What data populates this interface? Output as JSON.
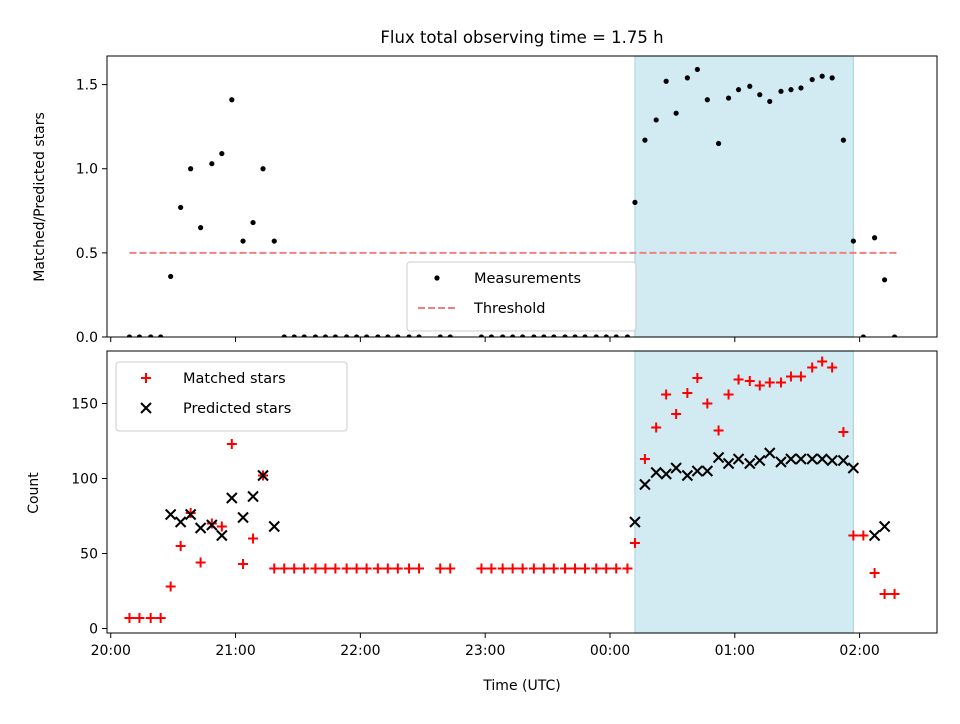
{
  "chart_data": {
    "title": "Flux total observing time = 1.75 h",
    "xlabel": "Time (UTC)",
    "x_ticks": [
      "20:00",
      "21:00",
      "22:00",
      "23:00",
      "00:00",
      "01:00",
      "02:00"
    ],
    "x_tick_hours": [
      20,
      21,
      22,
      23,
      24,
      25,
      26
    ],
    "xlim_hours": [
      19.97,
      26.62
    ],
    "highlight_hours": [
      24.2,
      25.95
    ],
    "highlight_color": "#add8e6",
    "panels": [
      {
        "type": "scatter",
        "ylabel": "Matched/Predicted stars",
        "ylim": [
          0,
          1.67
        ],
        "y_ticks": [
          0.0,
          0.5,
          1.0,
          1.5
        ],
        "y_tick_labels": [
          "0.0",
          "0.5",
          "1.0",
          "1.5"
        ],
        "legend_position": "lower-center",
        "threshold": {
          "name": "Threshold",
          "value": 0.5,
          "x_range": [
            20.15,
            26.3
          ],
          "color": "#f08080"
        },
        "series": [
          {
            "name": "Measurements",
            "marker": "dot",
            "color": "#000000",
            "points": [
              [
                20.15,
                0
              ],
              [
                20.23,
                0
              ],
              [
                20.32,
                0
              ],
              [
                20.4,
                0
              ],
              [
                20.48,
                0.36
              ],
              [
                20.56,
                0.77
              ],
              [
                20.64,
                1.0
              ],
              [
                20.72,
                0.65
              ],
              [
                20.81,
                1.03
              ],
              [
                20.89,
                1.09
              ],
              [
                20.97,
                1.41
              ],
              [
                21.06,
                0.57
              ],
              [
                21.14,
                0.68
              ],
              [
                21.22,
                1.0
              ],
              [
                21.31,
                0.57
              ],
              [
                21.39,
                0
              ],
              [
                21.47,
                0
              ],
              [
                21.55,
                0
              ],
              [
                21.64,
                0
              ],
              [
                21.72,
                0
              ],
              [
                21.8,
                0
              ],
              [
                21.89,
                0
              ],
              [
                21.97,
                0
              ],
              [
                22.05,
                0
              ],
              [
                22.14,
                0
              ],
              [
                22.22,
                0
              ],
              [
                22.3,
                0
              ],
              [
                22.39,
                0
              ],
              [
                22.47,
                0
              ],
              [
                22.64,
                0
              ],
              [
                22.72,
                0
              ],
              [
                22.97,
                0
              ],
              [
                23.05,
                0
              ],
              [
                23.14,
                0
              ],
              [
                23.22,
                0
              ],
              [
                23.3,
                0
              ],
              [
                23.39,
                0
              ],
              [
                23.47,
                0
              ],
              [
                23.55,
                0
              ],
              [
                23.64,
                0
              ],
              [
                23.72,
                0
              ],
              [
                23.8,
                0
              ],
              [
                23.89,
                0
              ],
              [
                23.97,
                0
              ],
              [
                24.05,
                0
              ],
              [
                24.14,
                0
              ],
              [
                24.2,
                0.8
              ],
              [
                24.28,
                1.17
              ],
              [
                24.37,
                1.29
              ],
              [
                24.45,
                1.52
              ],
              [
                24.53,
                1.33
              ],
              [
                24.62,
                1.54
              ],
              [
                24.7,
                1.59
              ],
              [
                24.78,
                1.41
              ],
              [
                24.87,
                1.15
              ],
              [
                24.95,
                1.42
              ],
              [
                25.03,
                1.47
              ],
              [
                25.12,
                1.49
              ],
              [
                25.2,
                1.44
              ],
              [
                25.28,
                1.4
              ],
              [
                25.37,
                1.46
              ],
              [
                25.45,
                1.47
              ],
              [
                25.53,
                1.48
              ],
              [
                25.62,
                1.53
              ],
              [
                25.7,
                1.55
              ],
              [
                25.78,
                1.54
              ],
              [
                25.87,
                1.17
              ],
              [
                25.95,
                0.57
              ],
              [
                26.03,
                0
              ],
              [
                26.12,
                0.59
              ],
              [
                26.2,
                0.34
              ],
              [
                26.28,
                0
              ]
            ]
          }
        ]
      },
      {
        "type": "scatter",
        "ylabel": "Count",
        "ylim": [
          -3,
          185
        ],
        "y_ticks": [
          0,
          50,
          100,
          150
        ],
        "y_tick_labels": [
          "0",
          "50",
          "100",
          "150"
        ],
        "legend_position": "top-left",
        "series": [
          {
            "name": "Matched stars",
            "marker": "plus",
            "color": "#ff0000",
            "points": [
              [
                20.15,
                7
              ],
              [
                20.23,
                7
              ],
              [
                20.32,
                7
              ],
              [
                20.4,
                7
              ],
              [
                20.48,
                28
              ],
              [
                20.56,
                55
              ],
              [
                20.64,
                77
              ],
              [
                20.72,
                44
              ],
              [
                20.81,
                70
              ],
              [
                20.89,
                68
              ],
              [
                20.97,
                123
              ],
              [
                21.06,
                43
              ],
              [
                21.14,
                60
              ],
              [
                21.22,
                102
              ],
              [
                21.31,
                40
              ],
              [
                21.39,
                40
              ],
              [
                21.47,
                40
              ],
              [
                21.55,
                40
              ],
              [
                21.64,
                40
              ],
              [
                21.72,
                40
              ],
              [
                21.8,
                40
              ],
              [
                21.89,
                40
              ],
              [
                21.97,
                40
              ],
              [
                22.05,
                40
              ],
              [
                22.14,
                40
              ],
              [
                22.22,
                40
              ],
              [
                22.3,
                40
              ],
              [
                22.39,
                40
              ],
              [
                22.47,
                40
              ],
              [
                22.64,
                40
              ],
              [
                22.72,
                40
              ],
              [
                22.97,
                40
              ],
              [
                23.05,
                40
              ],
              [
                23.14,
                40
              ],
              [
                23.22,
                40
              ],
              [
                23.3,
                40
              ],
              [
                23.39,
                40
              ],
              [
                23.47,
                40
              ],
              [
                23.55,
                40
              ],
              [
                23.64,
                40
              ],
              [
                23.72,
                40
              ],
              [
                23.8,
                40
              ],
              [
                23.89,
                40
              ],
              [
                23.97,
                40
              ],
              [
                24.05,
                40
              ],
              [
                24.14,
                40
              ],
              [
                24.2,
                57
              ],
              [
                24.28,
                113
              ],
              [
                24.37,
                134
              ],
              [
                24.45,
                156
              ],
              [
                24.53,
                143
              ],
              [
                24.62,
                157
              ],
              [
                24.7,
                167
              ],
              [
                24.78,
                150
              ],
              [
                24.87,
                132
              ],
              [
                24.95,
                156
              ],
              [
                25.03,
                166
              ],
              [
                25.12,
                165
              ],
              [
                25.2,
                162
              ],
              [
                25.28,
                164
              ],
              [
                25.37,
                164
              ],
              [
                25.45,
                168
              ],
              [
                25.53,
                168
              ],
              [
                25.62,
                174
              ],
              [
                25.7,
                178
              ],
              [
                25.78,
                174
              ],
              [
                25.87,
                131
              ],
              [
                25.95,
                62
              ],
              [
                26.03,
                62
              ],
              [
                26.12,
                37
              ],
              [
                26.2,
                23
              ],
              [
                26.28,
                23
              ]
            ]
          },
          {
            "name": "Predicted stars",
            "marker": "cross",
            "color": "#000000",
            "points": [
              [
                20.48,
                76
              ],
              [
                20.56,
                71
              ],
              [
                20.64,
                76
              ],
              [
                20.72,
                67
              ],
              [
                20.81,
                69
              ],
              [
                20.89,
                62
              ],
              [
                20.97,
                87
              ],
              [
                21.06,
                74
              ],
              [
                21.14,
                88
              ],
              [
                21.22,
                102
              ],
              [
                21.31,
                68
              ],
              [
                24.2,
                71
              ],
              [
                24.28,
                96
              ],
              [
                24.37,
                104
              ],
              [
                24.45,
                103
              ],
              [
                24.53,
                107
              ],
              [
                24.62,
                102
              ],
              [
                24.7,
                105
              ],
              [
                24.78,
                105
              ],
              [
                24.87,
                114
              ],
              [
                24.95,
                110
              ],
              [
                25.03,
                113
              ],
              [
                25.12,
                110
              ],
              [
                25.2,
                112
              ],
              [
                25.28,
                117
              ],
              [
                25.37,
                111
              ],
              [
                25.45,
                113
              ],
              [
                25.53,
                113
              ],
              [
                25.62,
                113
              ],
              [
                25.7,
                113
              ],
              [
                25.78,
                112
              ],
              [
                25.87,
                112
              ],
              [
                25.95,
                107
              ],
              [
                26.12,
                62
              ],
              [
                26.2,
                68
              ]
            ]
          }
        ]
      }
    ]
  }
}
